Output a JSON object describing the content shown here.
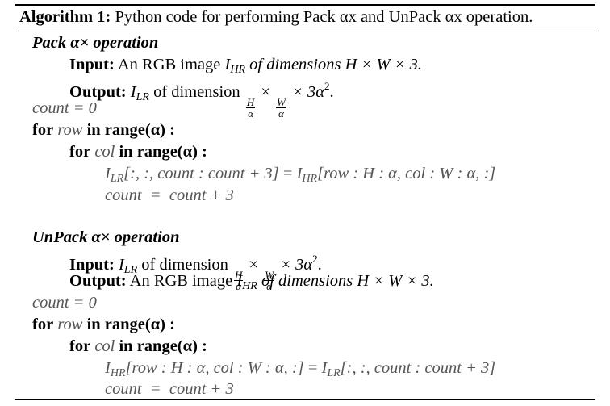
{
  "algorithm": {
    "label": "Algorithm 1:",
    "caption": "Python code for performing Pack αx and UnPack αx operation."
  },
  "pack": {
    "title": "Pack α× operation",
    "input_label": "Input:",
    "input_text": "An RGB image",
    "input_var": "I",
    "input_sub": "HR",
    "input_text2": "of dimensions H × W × 3.",
    "output_label": "Output:",
    "output_var": "I",
    "output_sub": "LR",
    "output_text": "of dimension",
    "frac1_num": "H",
    "frac1_den": "α",
    "frac2_num": "W",
    "frac2_den": "α",
    "output_tail": "× 3α",
    "output_exp": "2",
    "output_end": ".",
    "count_init": "count = 0",
    "for_row": "for",
    "row_var": "row",
    "row_in": "in range(α) :",
    "for_col": "for",
    "col_var": "col",
    "col_in": "in range(α) :",
    "assign_lhs": "I",
    "assign_lhs_sub": "LR",
    "assign_lhs_idx": "[:,  :, count : count + 3]",
    "assign_eq": "=",
    "assign_rhs": "I",
    "assign_rhs_sub": "HR",
    "assign_rhs_idx": "[row : H : α,  col : W : α,  :]",
    "count_inc": "count  =  count + 3"
  },
  "unpack": {
    "title": "UnPack α× operation",
    "input_label": "Input:",
    "input_var": "I",
    "input_sub": "LR",
    "input_text": "of dimension",
    "frac1_num": "H",
    "frac1_den": "α",
    "frac2_num": "W",
    "frac2_den": "α",
    "input_tail": "× 3α",
    "input_exp": "2",
    "input_end": ".",
    "output_label": "Output:",
    "output_text": "An RGB image",
    "output_var": "I",
    "output_sub": "HR",
    "output_text2": "of dimensions H × W × 3.",
    "count_init": "count = 0",
    "for_row": "for",
    "row_var": "row",
    "row_in": "in range(α) :",
    "for_col": "for",
    "col_var": "col",
    "col_in": "in range(α) :",
    "assign_lhs": "I",
    "assign_lhs_sub": "HR",
    "assign_lhs_idx": "[row : H : α,  col : W : α,  :]",
    "assign_eq": "=",
    "assign_rhs": "I",
    "assign_rhs_sub": "LR",
    "assign_rhs_idx": "[:,  :, count : count + 3]",
    "count_inc": "count  =  count + 3"
  }
}
